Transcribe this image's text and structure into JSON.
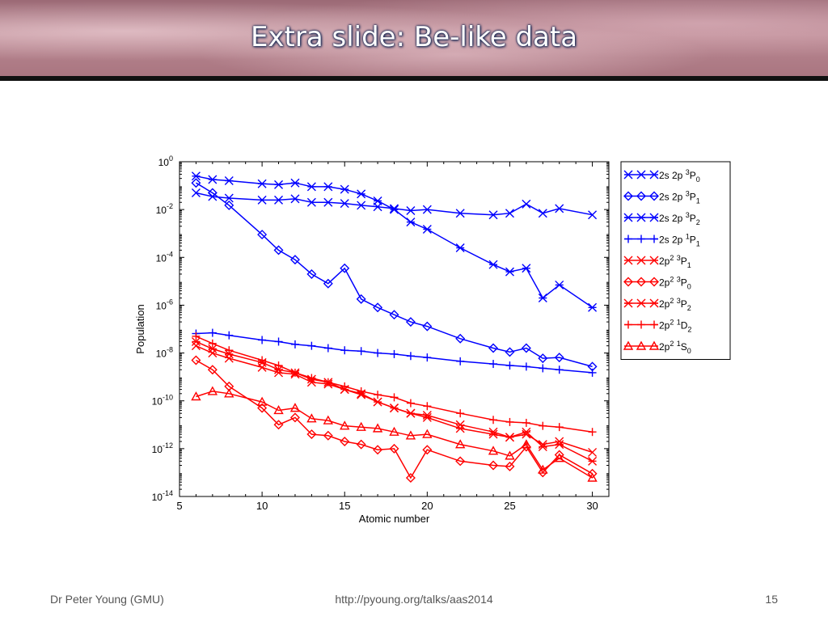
{
  "slide": {
    "title": "Extra slide: Be-like data",
    "footer_left": "Dr Peter Young (GMU)",
    "footer_center": "http://pyoung.org/talks/aas2014",
    "footer_right": "15"
  },
  "chart_data": {
    "type": "line",
    "xlabel": "Atomic number",
    "ylabel": "Population",
    "xlim": [
      5,
      31
    ],
    "ylim_log10": [
      -14,
      0
    ],
    "yscale": "log",
    "x_ticks": [
      5,
      10,
      15,
      20,
      25,
      30
    ],
    "y_tick_exponents": [
      0,
      -2,
      -4,
      -6,
      -8,
      -10,
      -12,
      -14
    ],
    "grid": false,
    "legend_position": "outside-right",
    "series": [
      {
        "name": "2s 2p 3P0",
        "base": "2s 2p ",
        "sup": "3",
        "L": "P",
        "sub": "0",
        "color": "#0000ff",
        "marker": "x",
        "x": [
          6,
          7,
          8,
          10,
          11,
          12,
          13,
          14,
          15,
          16,
          17,
          18,
          19,
          20,
          22,
          24,
          25,
          26,
          27,
          28,
          30
        ],
        "y": [
          0.05,
          0.035,
          0.03,
          0.025,
          0.025,
          0.028,
          0.02,
          0.02,
          0.018,
          0.015,
          0.013,
          0.011,
          0.009,
          0.01,
          0.007,
          0.006,
          0.007,
          0.017,
          0.007,
          0.011,
          0.006
        ]
      },
      {
        "name": "2s 2p 3P1",
        "base": "2s 2p ",
        "sup": "3",
        "L": "P",
        "sub": "1",
        "color": "#0000ff",
        "marker": "diamond",
        "x": [
          6,
          7,
          8,
          10,
          11,
          12,
          13,
          14,
          15,
          16,
          17,
          18,
          19,
          20,
          22,
          24,
          25,
          26,
          27,
          28,
          30
        ],
        "y": [
          0.13,
          0.05,
          0.015,
          0.0009,
          0.0002,
          8e-05,
          2e-05,
          8e-06,
          3.5e-05,
          1.8e-06,
          8e-07,
          4e-07,
          2e-07,
          1.3e-07,
          4e-08,
          1.6e-08,
          1.1e-08,
          1.6e-08,
          6e-09,
          6.5e-09,
          2.7e-09
        ]
      },
      {
        "name": "2s 2p 3P2",
        "base": "2s 2p ",
        "sup": "3",
        "L": "P",
        "sub": "2",
        "color": "#0000ff",
        "marker": "star",
        "x": [
          6,
          7,
          8,
          10,
          11,
          12,
          13,
          14,
          15,
          16,
          17,
          18,
          19,
          20,
          22,
          24,
          25,
          26,
          27,
          28,
          30
        ],
        "y": [
          0.25,
          0.18,
          0.16,
          0.12,
          0.11,
          0.13,
          0.09,
          0.09,
          0.07,
          0.045,
          0.023,
          0.01,
          0.003,
          0.0015,
          0.00025,
          5e-05,
          2.5e-05,
          3.5e-05,
          2e-06,
          7e-06,
          8e-07
        ]
      },
      {
        "name": "2s 2p 1P1",
        "base": "2s 2p ",
        "sup": "1",
        "L": "P",
        "sub": "1",
        "color": "#0000ff",
        "marker": "plus",
        "x": [
          6,
          7,
          8,
          10,
          11,
          12,
          13,
          14,
          15,
          16,
          17,
          18,
          19,
          20,
          22,
          24,
          25,
          26,
          27,
          28,
          30
        ],
        "y": [
          6.5e-08,
          7e-08,
          5.5e-08,
          3.5e-08,
          3e-08,
          2.3e-08,
          2e-08,
          1.6e-08,
          1.3e-08,
          1.2e-08,
          1e-08,
          9e-09,
          7.5e-09,
          6.5e-09,
          4.5e-09,
          3.5e-09,
          3e-09,
          2.7e-09,
          2.3e-09,
          2e-09,
          1.5e-09
        ]
      },
      {
        "name": "2p2 3P1",
        "base": "2p",
        "pow": "2",
        "sup": "3",
        "L": "P",
        "sub": "1",
        "color": "#ff0000",
        "marker": "x",
        "x": [
          6,
          7,
          8,
          10,
          11,
          12,
          13,
          14,
          15,
          16,
          17,
          18,
          19,
          20,
          22,
          24,
          25,
          26,
          27,
          28,
          30
        ],
        "y": [
          2e-08,
          1e-08,
          6e-09,
          2.5e-09,
          1.5e-09,
          1.3e-09,
          6e-10,
          5e-10,
          3e-10,
          1.8e-10,
          9e-11,
          5e-11,
          3e-11,
          2.5e-11,
          1e-11,
          5e-12,
          3e-12,
          4e-12,
          1.5e-12,
          2e-12,
          7e-13
        ]
      },
      {
        "name": "2p2 3P0",
        "base": "2p",
        "pow": "2",
        "sup": "3",
        "L": "P",
        "sub": "0",
        "color": "#ff0000",
        "marker": "diamond",
        "x": [
          6,
          7,
          8,
          10,
          11,
          12,
          13,
          14,
          15,
          16,
          17,
          18,
          19,
          20,
          22,
          24,
          25,
          26,
          27,
          28,
          30
        ],
        "y": [
          5e-09,
          2e-09,
          4e-10,
          5e-11,
          1e-11,
          2e-11,
          4e-12,
          3.5e-12,
          2e-12,
          1.5e-12,
          9e-13,
          1e-12,
          6e-14,
          9e-13,
          3e-13,
          2e-13,
          1.8e-13,
          1.2e-12,
          1e-13,
          5.5e-13,
          9e-14
        ]
      },
      {
        "name": "2p2 3P2",
        "base": "2p",
        "pow": "2",
        "sup": "3",
        "L": "P",
        "sub": "2",
        "color": "#ff0000",
        "marker": "star",
        "x": [
          6,
          7,
          8,
          10,
          11,
          12,
          13,
          14,
          15,
          16,
          17,
          18,
          19,
          20,
          22,
          24,
          25,
          26,
          27,
          28,
          30
        ],
        "y": [
          3e-08,
          1.5e-08,
          9e-09,
          4e-09,
          2e-09,
          1.5e-09,
          8e-10,
          6e-10,
          3e-10,
          2e-10,
          9e-11,
          5e-11,
          3e-11,
          2e-11,
          7e-12,
          4e-12,
          3e-12,
          5e-12,
          1.2e-12,
          1.5e-12,
          3e-13
        ]
      },
      {
        "name": "2p2 1D2",
        "base": "2p",
        "pow": "2",
        "sup": "1",
        "L": "D",
        "sub": "2",
        "color": "#ff0000",
        "marker": "plus",
        "x": [
          6,
          7,
          8,
          10,
          11,
          12,
          13,
          14,
          15,
          16,
          17,
          18,
          19,
          20,
          22,
          24,
          25,
          26,
          27,
          28,
          30
        ],
        "y": [
          5e-08,
          2.5e-08,
          1.3e-08,
          5e-09,
          3e-09,
          1.5e-09,
          9e-10,
          6e-10,
          4e-10,
          2.5e-10,
          1.8e-10,
          1.4e-10,
          8e-11,
          6e-11,
          3e-11,
          1.6e-11,
          1.3e-11,
          1.2e-11,
          9e-12,
          8e-12,
          5e-12
        ]
      },
      {
        "name": "2p2 1S0",
        "base": "2p",
        "pow": "2",
        "sup": "1",
        "L": "S",
        "sub": "0",
        "color": "#ff0000",
        "marker": "triangle",
        "x": [
          6,
          7,
          8,
          10,
          11,
          12,
          13,
          14,
          15,
          16,
          17,
          18,
          19,
          20,
          22,
          24,
          25,
          26,
          27,
          28,
          30
        ],
        "y": [
          1.5e-10,
          2.5e-10,
          2e-10,
          9e-11,
          4e-11,
          5e-11,
          1.8e-11,
          1.5e-11,
          9e-12,
          8e-12,
          7e-12,
          5e-12,
          3.5e-12,
          4e-12,
          1.5e-12,
          8e-13,
          5e-13,
          1.5e-12,
          1.3e-13,
          4e-13,
          6e-14
        ]
      }
    ]
  }
}
